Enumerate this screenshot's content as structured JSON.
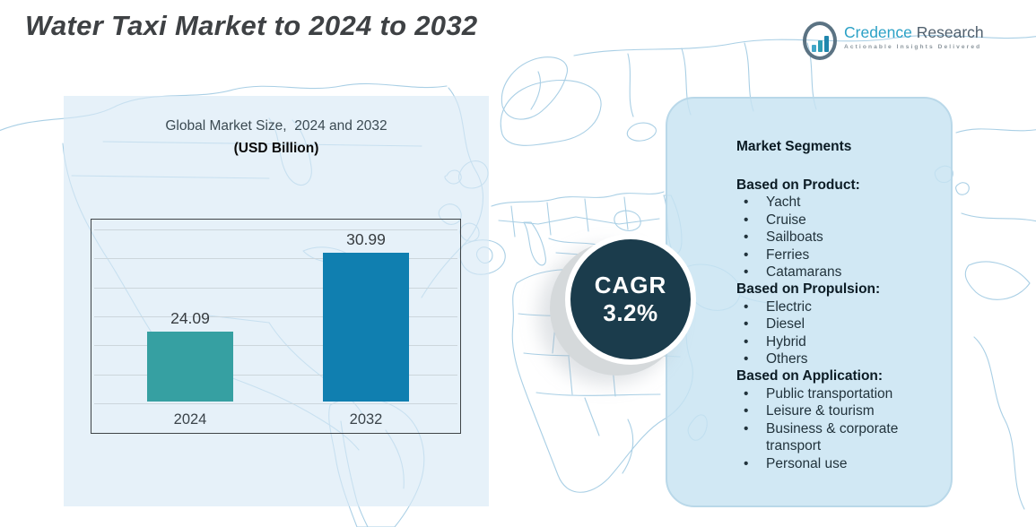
{
  "page": {
    "title": "Water Taxi Market to 2024 to 2032"
  },
  "logo": {
    "icon": "bar-chart-circle-icon",
    "name_primary": "Credence",
    "name_secondary": "Research",
    "tagline": "Actionable Insights Delivered"
  },
  "chart_data": {
    "type": "bar",
    "title": "Global Market Size,  2024 and 2032",
    "subtitle": "(USD Billion)",
    "categories": [
      "2024",
      "2032"
    ],
    "values": [
      24.09,
      30.99
    ],
    "bar_colors": [
      "#36a0a2",
      "#107fb0"
    ],
    "ylabel": "",
    "xlabel": "",
    "ylim": [
      18,
      33.2
    ],
    "gridline_count": 7,
    "grid": "horizontal",
    "legend": "none"
  },
  "cagr": {
    "label": "CAGR",
    "value": "3.2%"
  },
  "segments": {
    "heading": "Market Segments",
    "groups": [
      {
        "title": "Based on Product:",
        "items": [
          "Yacht",
          "Cruise",
          "Sailboats",
          "Ferries",
          "Catamarans"
        ]
      },
      {
        "title": "Based on Propulsion:",
        "items": [
          "Electric",
          "Diesel",
          "Hybrid",
          "Others"
        ]
      },
      {
        "title": "Based on Application:",
        "items": [
          "Public transportation",
          "Leisure & tourism",
          "Business & corporate transport",
          "Personal use"
        ]
      }
    ]
  },
  "colors": {
    "bar_2024": "#36a0a2",
    "bar_2032": "#107fb0",
    "cagr_circle": "#1b3c4c",
    "panel_left": "#e8f1f8",
    "panel_right": "#d9eaf3",
    "map_outline": "#a9cfe5",
    "title_text": "#3e4144",
    "logo_primary": "#2ba1c6",
    "logo_secondary": "#50606e"
  }
}
